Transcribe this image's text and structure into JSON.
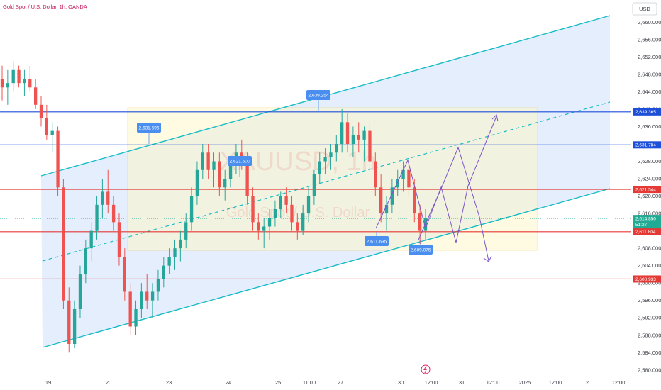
{
  "chart_data": {
    "type": "candlestick",
    "title": "Gold Spot / U.S. Dollar, 1h, OANDA",
    "currency": "USD",
    "watermark_symbol": "XAUUSD, 1h",
    "watermark_name": "Gold Spot / U.S. Dollar",
    "ylim": [
      2578.5,
      2662.5
    ],
    "y_ticks": [
      "2,660.000",
      "2,656.000",
      "2,652.000",
      "2,648.000",
      "2,644.000",
      "2,640.000",
      "2,636.000",
      "2,632.000",
      "2,628.000",
      "2,624.000",
      "2,620.000",
      "2,616.000",
      "2,612.000",
      "2,608.000",
      "2,604.000",
      "2,600.000",
      "2,596.000",
      "2,592.000",
      "2,588.000",
      "2,584.000",
      "2,580.000"
    ],
    "x_ticks": [
      "19",
      "20",
      "23",
      "24",
      "25",
      "11:00",
      "27",
      "30",
      "12:00",
      "31",
      "12:00",
      "2025",
      "12:00",
      "2",
      "12:00"
    ],
    "price_lines": [
      {
        "label": "2,639.365",
        "value": 2639.365,
        "color": "#1e4fd8"
      },
      {
        "label": "2,631.784",
        "value": 2631.784,
        "color": "#1e4fd8"
      },
      {
        "label": "2,621.544",
        "value": 2621.544,
        "color": "#e53935"
      },
      {
        "label": "2,611.804",
        "value": 2611.804,
        "color": "#e53935"
      },
      {
        "label": "2,600.933",
        "value": 2600.933,
        "color": "#e53935"
      }
    ],
    "current_price": {
      "label": "2,614.850",
      "countdown": "51:27",
      "value": 2614.85,
      "color": "#22ab94"
    },
    "annotations": [
      {
        "label": "2,631.696",
        "value": 2631.696
      },
      {
        "label": "2,621.600",
        "value": 2621.6
      },
      {
        "label": "2,639.254",
        "value": 2639.254
      },
      {
        "label": "2,611.695",
        "value": 2611.695
      },
      {
        "label": "2,609.075",
        "value": 2609.075
      }
    ],
    "candle_colors": {
      "up": "#26a69a",
      "down": "#ef5350"
    },
    "candles_ohlc": [
      [
        2647,
        2650,
        2642,
        2645
      ],
      [
        2645,
        2649,
        2641,
        2646
      ],
      [
        2646,
        2651,
        2644,
        2649
      ],
      [
        2649,
        2650,
        2645,
        2646
      ],
      [
        2646,
        2649,
        2643,
        2647
      ],
      [
        2647,
        2650,
        2644,
        2645
      ],
      [
        2645,
        2647,
        2640,
        2641
      ],
      [
        2641,
        2643,
        2636,
        2638
      ],
      [
        2638,
        2641,
        2633,
        2634
      ],
      [
        2634,
        2637,
        2630,
        2635
      ],
      [
        2635,
        2636,
        2620,
        2622
      ],
      [
        2622,
        2624,
        2594,
        2596
      ],
      [
        2596,
        2599,
        2584,
        2586
      ],
      [
        2586,
        2596,
        2585,
        2594
      ],
      [
        2594,
        2604,
        2592,
        2602
      ],
      [
        2602,
        2610,
        2600,
        2608
      ],
      [
        2608,
        2614,
        2605,
        2612
      ],
      [
        2612,
        2620,
        2610,
        2618
      ],
      [
        2618,
        2624,
        2615,
        2621
      ],
      [
        2621,
        2626,
        2616,
        2618
      ],
      [
        2618,
        2620,
        2612,
        2614
      ],
      [
        2614,
        2616,
        2604,
        2606
      ],
      [
        2606,
        2608,
        2596,
        2598
      ],
      [
        2598,
        2600,
        2588,
        2590
      ],
      [
        2590,
        2596,
        2588,
        2594
      ],
      [
        2594,
        2600,
        2592,
        2598
      ],
      [
        2598,
        2602,
        2594,
        2596
      ],
      [
        2596,
        2600,
        2592,
        2598
      ],
      [
        2598,
        2603,
        2596,
        2601
      ],
      [
        2601,
        2606,
        2599,
        2604
      ],
      [
        2604,
        2608,
        2602,
        2606
      ],
      [
        2606,
        2610,
        2603,
        2608
      ],
      [
        2608,
        2612,
        2605,
        2610
      ],
      [
        2610,
        2616,
        2608,
        2614
      ],
      [
        2614,
        2622,
        2612,
        2620
      ],
      [
        2620,
        2628,
        2618,
        2626
      ],
      [
        2626,
        2632,
        2624,
        2630
      ],
      [
        2630,
        2632,
        2624,
        2626
      ],
      [
        2626,
        2630,
        2622,
        2628
      ],
      [
        2628,
        2630,
        2620,
        2622
      ],
      [
        2622,
        2626,
        2619,
        2624
      ],
      [
        2624,
        2628,
        2622,
        2627
      ],
      [
        2627,
        2632,
        2625,
        2630
      ],
      [
        2630,
        2633,
        2626,
        2628
      ],
      [
        2628,
        2630,
        2618,
        2620
      ],
      [
        2620,
        2622,
        2612,
        2614
      ],
      [
        2614,
        2616,
        2610,
        2612
      ],
      [
        2612,
        2615,
        2608,
        2613
      ],
      [
        2613,
        2617,
        2610,
        2615
      ],
      [
        2615,
        2619,
        2613,
        2617
      ],
      [
        2617,
        2621,
        2615,
        2620
      ],
      [
        2620,
        2622,
        2616,
        2618
      ],
      [
        2618,
        2620,
        2612,
        2614
      ],
      [
        2614,
        2616,
        2610,
        2612
      ],
      [
        2612,
        2618,
        2611,
        2616
      ],
      [
        2616,
        2622,
        2614,
        2620
      ],
      [
        2620,
        2626,
        2618,
        2625
      ],
      [
        2625,
        2630,
        2623,
        2628
      ],
      [
        2628,
        2631,
        2625,
        2629
      ],
      [
        2629,
        2632,
        2626,
        2630
      ],
      [
        2630,
        2634,
        2628,
        2632
      ],
      [
        2632,
        2640,
        2630,
        2637
      ],
      [
        2637,
        2639,
        2630,
        2632
      ],
      [
        2632,
        2636,
        2629,
        2634
      ],
      [
        2634,
        2637,
        2630,
        2633
      ],
      [
        2633,
        2636,
        2628,
        2635
      ],
      [
        2635,
        2637,
        2626,
        2628
      ],
      [
        2628,
        2630,
        2620,
        2622
      ],
      [
        2622,
        2625,
        2614,
        2616
      ],
      [
        2616,
        2620,
        2612,
        2618
      ],
      [
        2618,
        2624,
        2616,
        2622
      ],
      [
        2622,
        2626,
        2620,
        2624
      ],
      [
        2624,
        2628,
        2621,
        2626
      ],
      [
        2626,
        2628,
        2620,
        2622
      ],
      [
        2622,
        2624,
        2614,
        2616
      ],
      [
        2616,
        2618,
        2609,
        2612
      ],
      [
        2612,
        2617,
        2610,
        2615
      ]
    ]
  }
}
